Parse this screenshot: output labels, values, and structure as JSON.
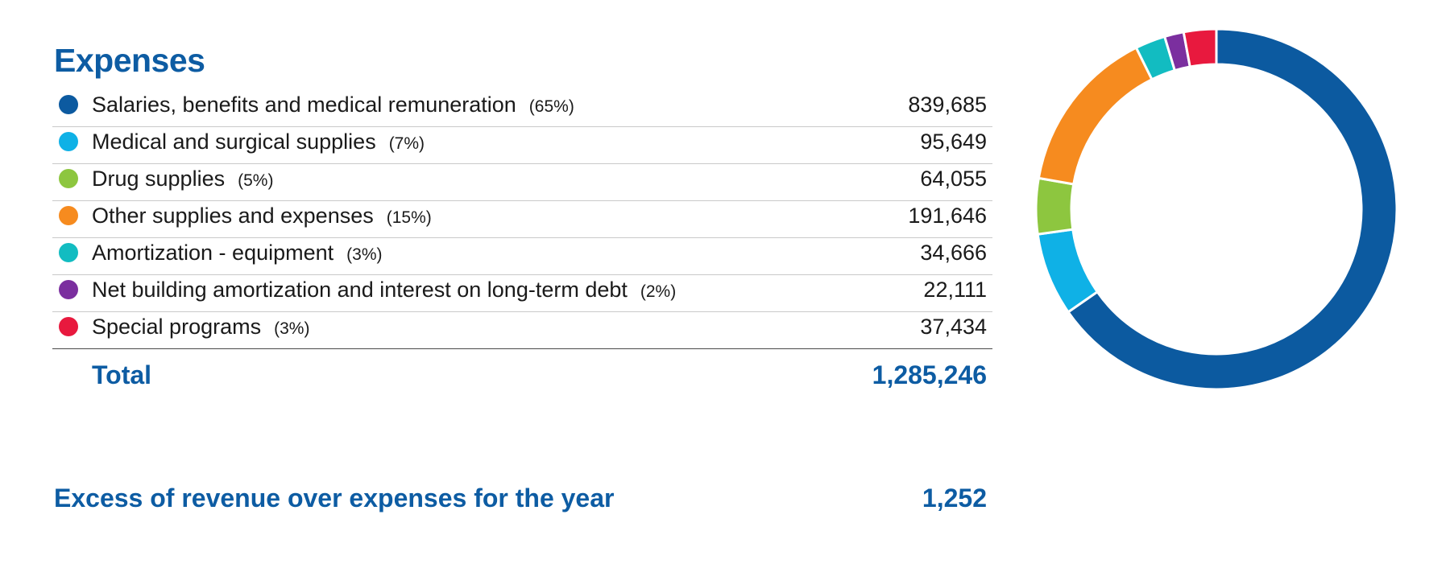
{
  "title": "Expenses",
  "total": {
    "label": "Total",
    "value": "1,285,246"
  },
  "excess": {
    "label": "Excess of revenue over expenses for the year",
    "value": "1,252"
  },
  "chart_data": {
    "type": "pie",
    "title": "Expenses",
    "categories": [
      "Salaries, benefits and medical remuneration",
      "Medical and surgical supplies",
      "Drug supplies",
      "Other supplies and expenses",
      "Amortization - equipment",
      "Net building amortization and interest on long-term debt",
      "Special programs"
    ],
    "percent_labels": [
      "(65%)",
      "(7%)",
      "(5%)",
      "(15%)",
      "(3%)",
      "(2%)",
      "(3%)"
    ],
    "values": [
      839685,
      95649,
      64055,
      191646,
      34666,
      22111,
      37434
    ],
    "value_labels": [
      "839,685",
      "95,649",
      "64,055",
      "191,646",
      "34,666",
      "22,111",
      "37,434"
    ],
    "colors": [
      "#0c5aa0",
      "#0fb1e6",
      "#8dc63f",
      "#f68b1f",
      "#12bcc1",
      "#7b2f9f",
      "#e8193e"
    ],
    "donut": true
  }
}
